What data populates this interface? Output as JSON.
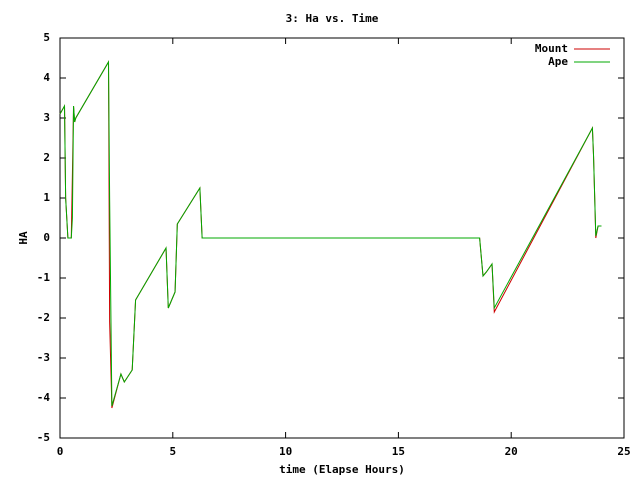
{
  "chart_data": {
    "type": "line",
    "title": "3: Ha vs. Time",
    "x_label": "time (Elapse Hours)",
    "y_label": "HA",
    "x": [
      0,
      0.2,
      0.25,
      0.35,
      0.5,
      0.55,
      0.6,
      0.65,
      0.7,
      2.15,
      2.2,
      2.3,
      2.7,
      2.85,
      3.2,
      3.35,
      4.7,
      4.8,
      5.1,
      5.2,
      6.2,
      6.3,
      18.6,
      18.75,
      18.9,
      19.15,
      19.25,
      23.6,
      23.65,
      23.75,
      23.85,
      24.0
    ],
    "series": [
      {
        "name": "Mount",
        "color": "#cc0000",
        "values": [
          3.1,
          3.3,
          1.0,
          0,
          0,
          1.6,
          3.3,
          2.9,
          3.0,
          4.4,
          -2.1,
          -4.25,
          -3.4,
          -3.6,
          -3.3,
          -1.55,
          -0.25,
          -1.75,
          -1.35,
          0.35,
          1.25,
          0,
          0,
          -0.95,
          -0.85,
          -0.65,
          -1.85,
          2.75,
          2.05,
          0.0,
          0.3,
          0.3
        ]
      },
      {
        "name": "Ape",
        "color": "#00aa00",
        "values": [
          3.1,
          3.3,
          1.0,
          0,
          0,
          0.5,
          3.3,
          2.9,
          3.0,
          4.4,
          1.0,
          -4.2,
          -3.4,
          -3.6,
          -3.3,
          -1.55,
          -0.25,
          -1.75,
          -1.35,
          0.35,
          1.25,
          0,
          0,
          -0.95,
          -0.85,
          -0.65,
          -1.75,
          2.75,
          2.05,
          0.05,
          0.3,
          0.3
        ]
      }
    ],
    "xlim": [
      0,
      25
    ],
    "xticks": [
      0,
      5,
      10,
      15,
      20,
      25
    ],
    "ylim": [
      -5,
      5
    ],
    "yticks": [
      -5,
      -4,
      -3,
      -2,
      -1,
      0,
      1,
      2,
      3,
      4,
      5
    ],
    "legend": "top-right",
    "grid": false
  }
}
